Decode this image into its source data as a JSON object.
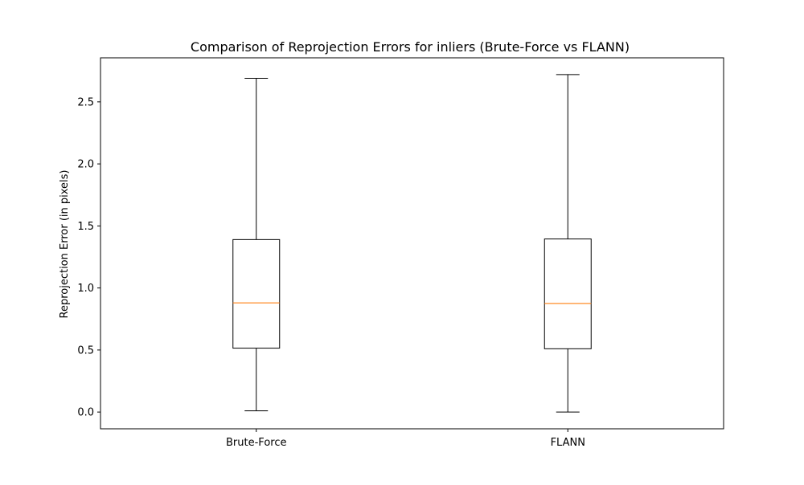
{
  "chart_data": {
    "type": "box",
    "title": "Comparison of Reprojection Errors for inliers (Brute-Force vs FLANN)",
    "xlabel": "",
    "ylabel": "Reprojection Error (in pixels)",
    "categories": [
      "Brute-Force",
      "FLANN"
    ],
    "boxes": [
      {
        "category": "Brute-Force",
        "whisker_low": 0.01,
        "q1": 0.515,
        "median": 0.88,
        "q3": 1.39,
        "whisker_high": 2.69
      },
      {
        "category": "FLANN",
        "whisker_low": 0.0,
        "q1": 0.51,
        "median": 0.875,
        "q3": 1.395,
        "whisker_high": 2.72
      }
    ],
    "ylim": [
      -0.135,
      2.855
    ],
    "yticks": [
      0.0,
      0.5,
      1.0,
      1.5,
      2.0,
      2.5
    ],
    "ytick_labels": [
      "0.0",
      "0.5",
      "1.0",
      "1.5",
      "2.0",
      "2.5"
    ],
    "grid": false,
    "colors": {
      "box": "#000000",
      "median": "#ff7f0e",
      "whisker": "#000000",
      "axes": "#000000"
    }
  }
}
